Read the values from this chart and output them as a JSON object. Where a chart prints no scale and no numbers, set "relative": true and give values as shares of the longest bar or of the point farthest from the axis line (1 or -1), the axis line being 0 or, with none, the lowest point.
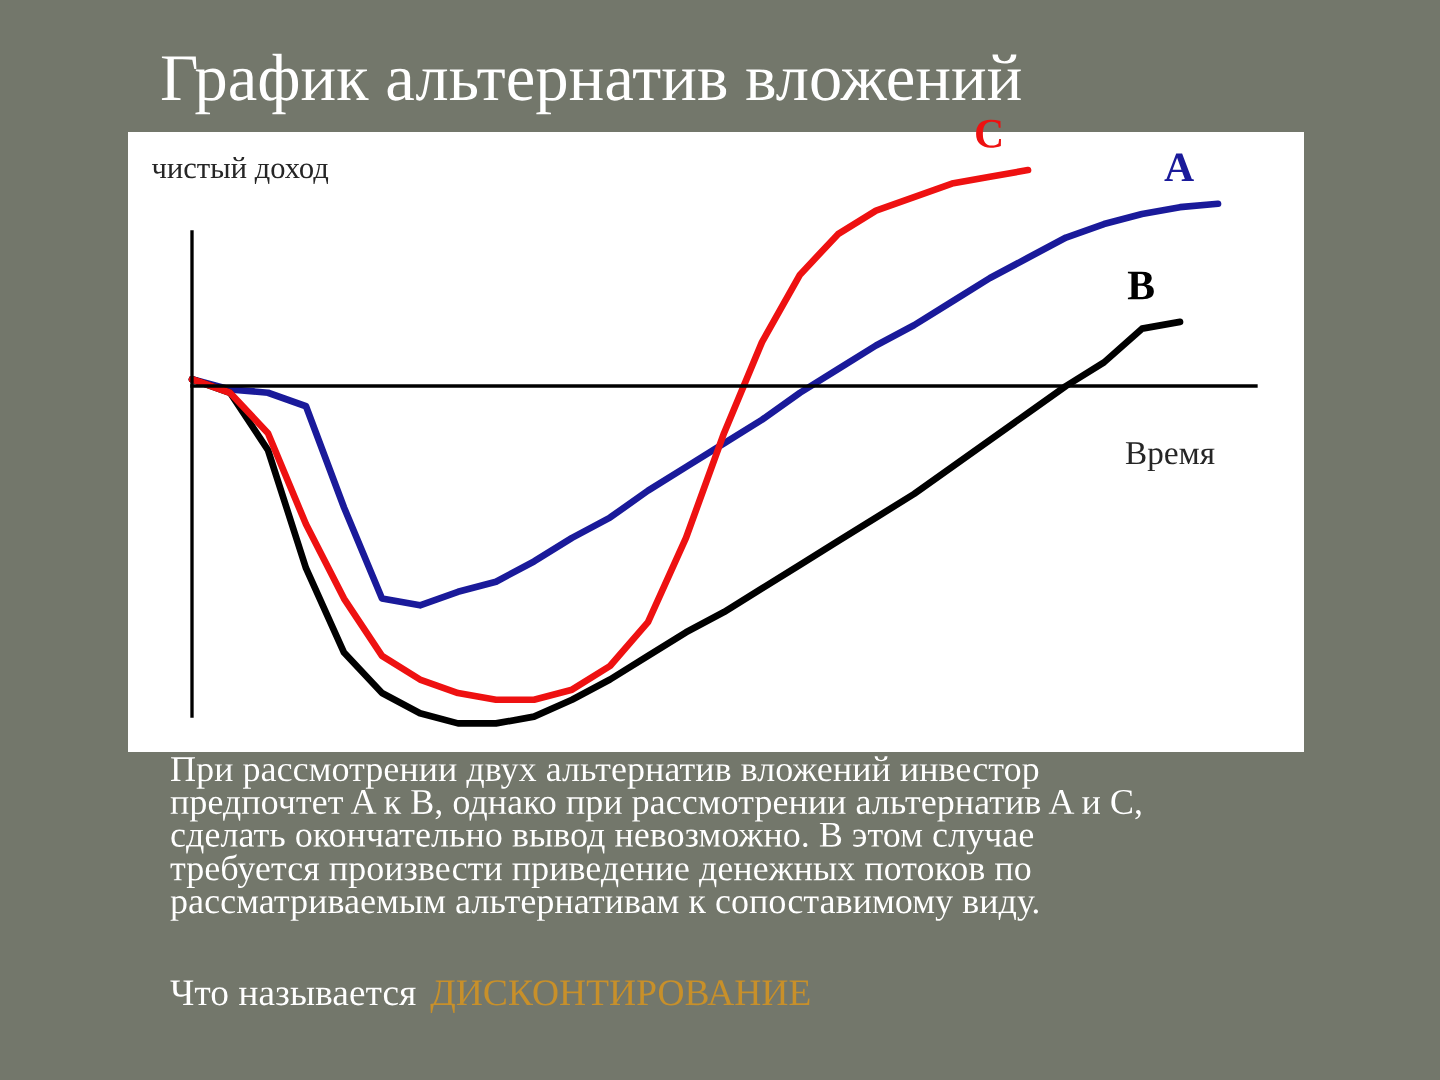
{
  "chart_data": {
    "type": "line",
    "relative": true,
    "title": "График альтернатив вложений",
    "xlabel": "Время",
    "ylabel": "чистый доход",
    "categories": [
      null,
      null,
      null,
      null,
      null,
      null,
      null,
      null,
      null,
      null,
      null,
      null,
      null,
      null,
      null,
      null,
      null,
      null,
      null,
      null,
      null,
      null,
      null,
      null,
      null,
      null,
      null,
      null,
      null
    ],
    "series": [
      {
        "name": "A",
        "color": "#1a1a9a",
        "values": [
          0.02,
          -0.01,
          -0.02,
          -0.06,
          -0.36,
          -0.63,
          -0.65,
          -0.61,
          -0.58,
          -0.52,
          -0.45,
          -0.39,
          -0.31,
          -0.24,
          -0.17,
          -0.1,
          -0.02,
          0.05,
          0.12,
          0.18,
          0.25,
          0.32,
          0.38,
          0.44,
          0.48,
          0.51,
          0.53,
          0.54,
          null
        ]
      },
      {
        "name": "B",
        "color": "#000000",
        "values": [
          0.02,
          -0.02,
          -0.19,
          -0.54,
          -0.79,
          -0.91,
          -0.97,
          -1.0,
          -1.0,
          -0.98,
          -0.93,
          -0.87,
          -0.8,
          -0.73,
          -0.67,
          -0.6,
          -0.53,
          -0.46,
          -0.39,
          -0.32,
          -0.24,
          -0.16,
          -0.08,
          0.0,
          0.07,
          0.17,
          0.19,
          null,
          null
        ]
      },
      {
        "name": "C",
        "color": "#ee1111",
        "values": [
          0.02,
          -0.02,
          -0.14,
          -0.41,
          -0.63,
          -0.8,
          -0.87,
          -0.91,
          -0.93,
          -0.93,
          -0.9,
          -0.83,
          -0.7,
          -0.45,
          -0.14,
          0.13,
          0.33,
          0.45,
          0.52,
          0.56,
          0.6,
          0.62,
          0.64,
          null,
          null,
          null,
          null,
          null,
          null
        ]
      }
    ],
    "legend": false,
    "marker": "none",
    "line_style": "solid",
    "annotations": [
      "При рассмотрении двух альтернатив вложений инвестор\nпредпочтет A к B, однако при рассмотрении альтернатив A и C,\nсделать окончательно вывод невозможно. В этом случае\nтребуется произвести приведение денежных потоков по\nрассматриваемым альтернативам к сопоставимому виду.",
      "Что называется",
      "ДИСКОНТИРОВАНИЕ"
    ]
  }
}
